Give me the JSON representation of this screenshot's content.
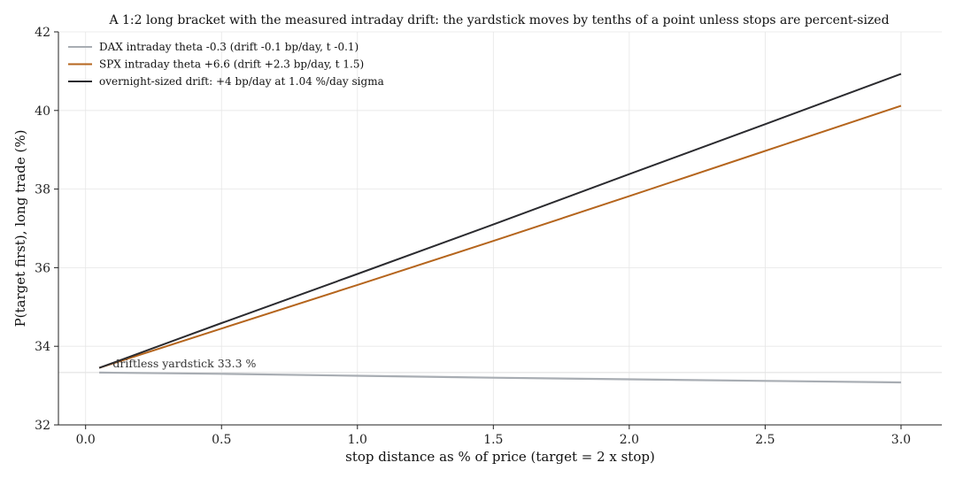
{
  "chart_data": {
    "type": "line",
    "title": "A 1:2 long bracket with the measured intraday drift: the yardstick moves by tenths of a point unless stops are percent-sized",
    "xlabel": "stop distance as % of price (target = 2 x stop)",
    "ylabel": "P(target first), long trade (%)",
    "xlim": [
      -0.1,
      3.15
    ],
    "ylim": [
      32,
      42
    ],
    "xticks": [
      0.0,
      0.5,
      1.0,
      1.5,
      2.0,
      2.5,
      3.0
    ],
    "xtick_labels": [
      "0.0",
      "0.5",
      "1.0",
      "1.5",
      "2.0",
      "2.5",
      "3.0"
    ],
    "yticks": [
      32,
      34,
      36,
      38,
      40,
      42
    ],
    "ytick_labels": [
      "32",
      "34",
      "36",
      "38",
      "40",
      "42"
    ],
    "grid": true,
    "legend_position": "top-left",
    "series": [
      {
        "name": "DAX intraday theta -0.3 (drift -0.1 bp/day, t -0.1)",
        "color": "#a8adb3",
        "x": [
          0.05,
          0.5,
          1.0,
          1.5,
          2.0,
          2.5,
          3.0
        ],
        "y": [
          33.33,
          33.3,
          33.25,
          33.2,
          33.16,
          33.12,
          33.08
        ]
      },
      {
        "name": "SPX intraday theta +6.6 (drift +2.3 bp/day, t 1.5)",
        "color": "#b5651d",
        "x": [
          0.05,
          0.5,
          1.0,
          1.5,
          2.0,
          2.5,
          3.0
        ],
        "y": [
          33.45,
          34.45,
          35.56,
          36.68,
          37.82,
          38.97,
          40.12
        ]
      },
      {
        "name": "overnight-sized drift: +4 bp/day at 1.04 %/day sigma",
        "color": "#2b2b2f",
        "x": [
          0.05,
          0.5,
          1.0,
          1.5,
          2.0,
          2.5,
          3.0
        ],
        "y": [
          33.45,
          34.59,
          35.84,
          37.1,
          38.38,
          39.65,
          40.93
        ]
      }
    ],
    "reference_line": {
      "y": 33.333,
      "color": "#e3e3e3"
    },
    "annotation": {
      "text": "driftless yardstick 33.3 %",
      "x": 0.1,
      "y": 33.55
    }
  }
}
